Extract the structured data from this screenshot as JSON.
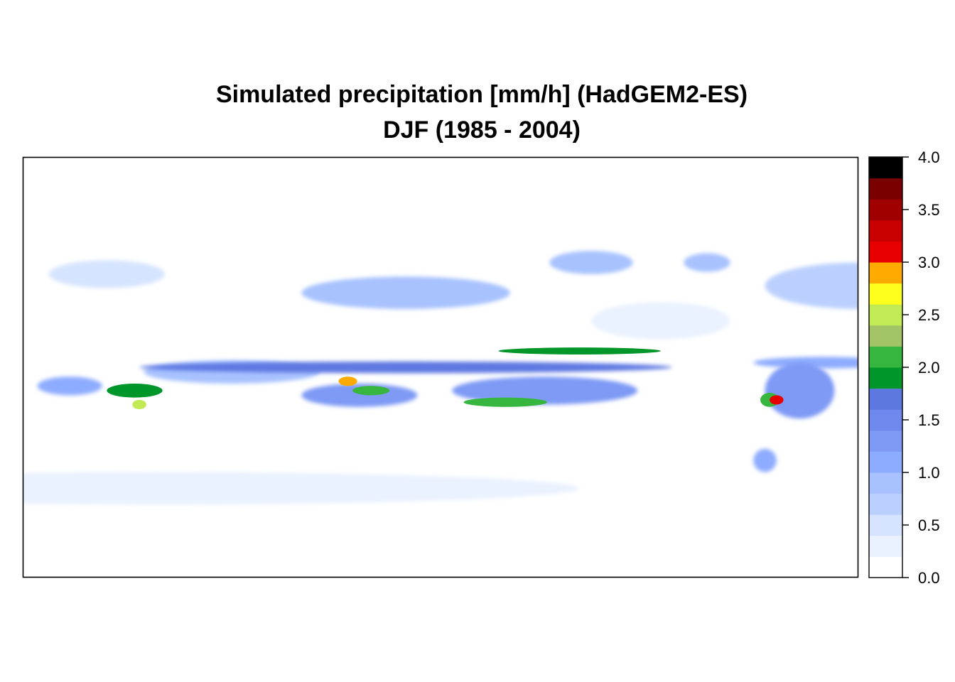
{
  "chart_data": {
    "type": "heatmap",
    "title": "Simulated precipitation [mm/h] (HadGEM2-ES)",
    "subtitle": "DJF (1985 - 2004)",
    "colorbar": {
      "range": [
        0.0,
        4.0
      ],
      "tick_labels": [
        "0.0",
        "0.5",
        "1.0",
        "1.5",
        "2.0",
        "2.5",
        "3.0",
        "3.5",
        "4.0"
      ],
      "tick_values": [
        0.0,
        0.5,
        1.0,
        1.5,
        2.0,
        2.5,
        3.0,
        3.5,
        4.0
      ],
      "bins": [
        {
          "from": 0.0,
          "to": 0.2,
          "color": "#ffffff"
        },
        {
          "from": 0.2,
          "to": 0.4,
          "color": "#eaf2ff"
        },
        {
          "from": 0.4,
          "to": 0.6,
          "color": "#d6e4ff"
        },
        {
          "from": 0.6,
          "to": 0.8,
          "color": "#bcd0ff"
        },
        {
          "from": 0.8,
          "to": 1.0,
          "color": "#a8c2ff"
        },
        {
          "from": 1.0,
          "to": 1.2,
          "color": "#8eacff"
        },
        {
          "from": 1.2,
          "to": 1.4,
          "color": "#7e9af5"
        },
        {
          "from": 1.4,
          "to": 1.6,
          "color": "#6f88ee"
        },
        {
          "from": 1.6,
          "to": 1.8,
          "color": "#5e78e2"
        },
        {
          "from": 1.8,
          "to": 2.0,
          "color": "#00962a"
        },
        {
          "from": 2.0,
          "to": 2.2,
          "color": "#36b63e"
        },
        {
          "from": 2.2,
          "to": 2.4,
          "color": "#a3c466"
        },
        {
          "from": 2.4,
          "to": 2.6,
          "color": "#c2ea54"
        },
        {
          "from": 2.6,
          "to": 2.8,
          "color": "#ffff1e"
        },
        {
          "from": 2.8,
          "to": 3.0,
          "color": "#ffaa00"
        },
        {
          "from": 3.0,
          "to": 3.2,
          "color": "#e60000"
        },
        {
          "from": 3.2,
          "to": 3.4,
          "color": "#c80000"
        },
        {
          "from": 3.4,
          "to": 3.6,
          "color": "#a00000"
        },
        {
          "from": 3.6,
          "to": 3.8,
          "color": "#780000"
        },
        {
          "from": 3.8,
          "to": 4.0,
          "color": "#000000"
        }
      ]
    },
    "features": [
      {
        "lon": 135,
        "lat": 0,
        "lon_half": 115,
        "lat_half": 2.5,
        "value": 1.6
      },
      {
        "lon": 60,
        "lat": -2,
        "lon_half": 38,
        "lat_half": 5,
        "value": 0.9
      },
      {
        "lon": 18,
        "lat": -10,
        "lon_half": 12,
        "lat_half": 3,
        "value": 1.9
      },
      {
        "lon": -10,
        "lat": -8,
        "lon_half": 14,
        "lat_half": 4,
        "value": 1.1
      },
      {
        "lon": 115,
        "lat": -12,
        "lon_half": 25,
        "lat_half": 5,
        "value": 1.3
      },
      {
        "lon": 195,
        "lat": -10,
        "lon_half": 40,
        "lat_half": 6,
        "value": 1.3
      },
      {
        "lon": 120,
        "lat": -10,
        "lon_half": 8,
        "lat_half": 2,
        "value": 2.0
      },
      {
        "lon": 178,
        "lat": -15,
        "lon_half": 18,
        "lat_half": 2,
        "value": 2.0
      },
      {
        "lon": 210,
        "lat": 7,
        "lon_half": 35,
        "lat_half": 1.5,
        "value": 1.9
      },
      {
        "lon": 135,
        "lat": 32,
        "lon_half": 45,
        "lat_half": 7,
        "value": 0.8
      },
      {
        "lon": 215,
        "lat": 45,
        "lon_half": 18,
        "lat_half": 5,
        "value": 0.9
      },
      {
        "lon": 265,
        "lat": 45,
        "lon_half": 10,
        "lat_half": 4,
        "value": 0.8
      },
      {
        "lon": 330,
        "lat": 35,
        "lon_half": 40,
        "lat_half": 10,
        "value": 0.6
      },
      {
        "lon": 305,
        "lat": -10,
        "lon_half": 15,
        "lat_half": 12,
        "value": 1.3
      },
      {
        "lon": 292,
        "lat": -14,
        "lon_half": 4,
        "lat_half": 3,
        "value": 2.0
      },
      {
        "lon": 295,
        "lat": -14,
        "lon_half": 3,
        "lat_half": 2,
        "value": 3.1
      },
      {
        "lon": 315,
        "lat": 2,
        "lon_half": 30,
        "lat_half": 2.5,
        "value": 1.0
      },
      {
        "lon": 30,
        "lat": -52,
        "lon_half": 180,
        "lat_half": 7,
        "value": 0.3
      },
      {
        "lon": 290,
        "lat": -40,
        "lon_half": 5,
        "lat_half": 5,
        "value": 1.1
      },
      {
        "lon": 20,
        "lat": -16,
        "lon_half": 3,
        "lat_half": 2,
        "value": 2.4
      },
      {
        "lon": 110,
        "lat": -6,
        "lon_half": 4,
        "lat_half": 2,
        "value": 2.9
      },
      {
        "lon": 6,
        "lat": 40,
        "lon_half": 25,
        "lat_half": 6,
        "value": 0.4
      },
      {
        "lon": 245,
        "lat": 20,
        "lon_half": 30,
        "lat_half": 8,
        "value": 0.3
      }
    ]
  }
}
